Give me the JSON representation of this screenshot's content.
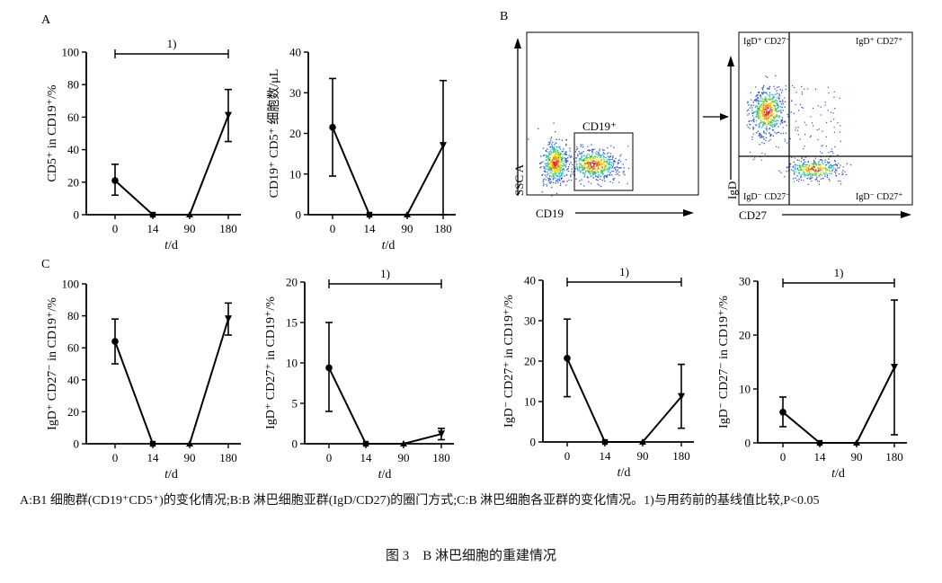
{
  "panel_labels": {
    "a": "A",
    "b": "B",
    "c": "C"
  },
  "x_axis_label": "t/d",
  "chart_data": [
    {
      "id": "A1",
      "type": "line",
      "ylabel": "CD5⁺ in CD19⁺/%",
      "x": [
        "0",
        "14",
        "90",
        "180"
      ],
      "y": [
        21,
        0,
        0,
        61
      ],
      "err_low": [
        12,
        0,
        0,
        45
      ],
      "err_high": [
        31,
        0,
        0,
        77
      ],
      "ylim": [
        0,
        100
      ],
      "yticks": [
        0,
        20,
        40,
        60,
        80,
        100
      ],
      "annotation": "1)"
    },
    {
      "id": "A2",
      "type": "line",
      "ylabel": "CD19⁺ CD5⁺ 细胞数/μL",
      "x": [
        "0",
        "14",
        "90",
        "180"
      ],
      "y": [
        21.5,
        0,
        0,
        17
      ],
      "err_low": [
        9.5,
        0,
        0,
        0
      ],
      "err_high": [
        33.5,
        0,
        0,
        33
      ],
      "ylim": [
        0,
        40
      ],
      "yticks": [
        0,
        10,
        20,
        30,
        40
      ],
      "annotation": ""
    },
    {
      "id": "C1",
      "type": "line",
      "ylabel": "IgD⁺ CD27⁻ in CD19⁺/%",
      "x": [
        "0",
        "14",
        "90",
        "180"
      ],
      "y": [
        64,
        0,
        0,
        78
      ],
      "err_low": [
        50,
        0,
        0,
        68
      ],
      "err_high": [
        78,
        0,
        0,
        88
      ],
      "ylim": [
        0,
        100
      ],
      "yticks": [
        0,
        20,
        40,
        60,
        80,
        100
      ],
      "annotation": ""
    },
    {
      "id": "C2",
      "type": "line",
      "ylabel": "IgD⁺ CD27⁺ in CD19⁺/%",
      "x": [
        "0",
        "14",
        "90",
        "180"
      ],
      "y": [
        9.4,
        0,
        0,
        1.2
      ],
      "err_low": [
        4,
        0,
        0,
        0.5
      ],
      "err_high": [
        15,
        0,
        0,
        1.9
      ],
      "ylim": [
        0,
        20
      ],
      "yticks": [
        0,
        5,
        10,
        15,
        20
      ],
      "annotation": "1)"
    },
    {
      "id": "C3",
      "type": "line",
      "ylabel": "IgD⁻ CD27⁺ in CD19⁺/%",
      "x": [
        "0",
        "14",
        "90",
        "180"
      ],
      "y": [
        20.7,
        0,
        0,
        11.2
      ],
      "err_low": [
        11.2,
        0,
        0,
        3.4
      ],
      "err_high": [
        30.4,
        0,
        0,
        19.2
      ],
      "ylim": [
        0,
        40
      ],
      "yticks": [
        0,
        10,
        20,
        30,
        40
      ],
      "annotation": "1)"
    },
    {
      "id": "C4",
      "type": "line",
      "ylabel": "IgD⁻ CD27⁻ in CD19⁺/%",
      "x": [
        "0",
        "14",
        "90",
        "180"
      ],
      "y": [
        5.7,
        0,
        0,
        14
      ],
      "err_low": [
        3,
        0,
        0,
        1.5
      ],
      "err_high": [
        8.5,
        0,
        0,
        26.5
      ],
      "ylim": [
        0,
        30
      ],
      "yticks": [
        0,
        10,
        20,
        30
      ],
      "annotation": "1)"
    }
  ],
  "flow": {
    "left": {
      "x_axis": "CD19",
      "y_axis": "SSC A",
      "gate": "CD19⁺"
    },
    "right": {
      "x_axis": "CD27",
      "y_axis": "IgD",
      "q_tl": "IgD⁺ CD27⁻",
      "q_tr": "IgD⁺ CD27⁺",
      "q_bl": "IgD⁻ CD27⁻",
      "q_br": "IgD⁻ CD27⁺"
    }
  },
  "caption": "A:B1 细胞群(CD19⁺CD5⁺)的变化情况;B:B 淋巴细胞亚群(IgD/CD27)的圈门方式;C:B 淋巴细胞各亚群的变化情况。1)与用药前的基线值比较,P<0.05",
  "figure_title": "图 3　B 淋巴细胞的重建情况"
}
